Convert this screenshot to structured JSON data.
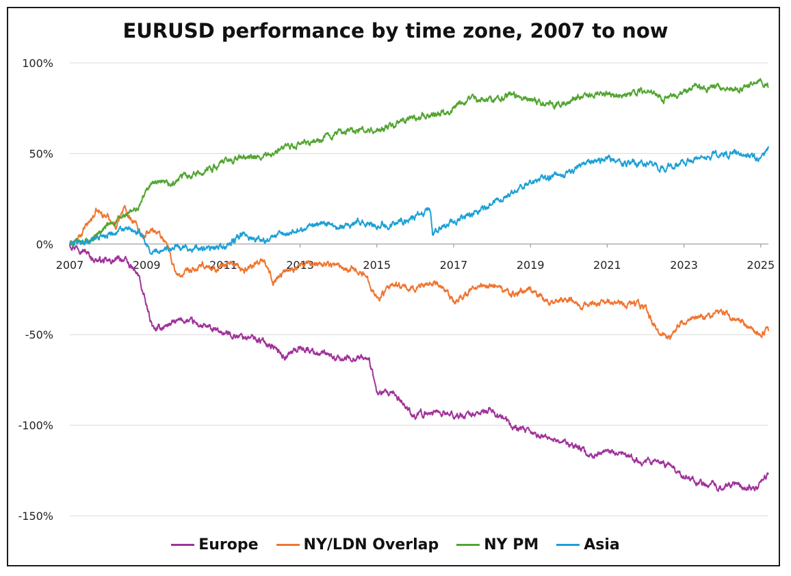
{
  "chart_data": {
    "type": "line",
    "title": "EURUSD performance by time zone, 2007 to now",
    "xlabel": "",
    "ylabel": "",
    "xlim": [
      2007,
      2025.2
    ],
    "ylim": [
      -150,
      100
    ],
    "x_ticks": [
      "2007",
      "2009",
      "2011",
      "2013",
      "2015",
      "2017",
      "2019",
      "2021",
      "2023",
      "2025"
    ],
    "y_ticks": [
      "100%",
      "50%",
      "0%",
      "-50%",
      "-100%",
      "-150%"
    ],
    "y_tick_values": [
      100,
      50,
      0,
      -50,
      -100,
      -150
    ],
    "grid": "horizontal",
    "legend_position": "bottom",
    "series": [
      {
        "name": "Europe",
        "color": "#a0329a",
        "points": [
          [
            2007.0,
            0
          ],
          [
            2007.3,
            -2
          ],
          [
            2007.6,
            -8
          ],
          [
            2008.0,
            -10
          ],
          [
            2008.4,
            -8
          ],
          [
            2008.8,
            -18
          ],
          [
            2009.0,
            -35
          ],
          [
            2009.2,
            -48
          ],
          [
            2009.6,
            -44
          ],
          [
            2010.0,
            -42
          ],
          [
            2010.4,
            -45
          ],
          [
            2010.8,
            -48
          ],
          [
            2011.2,
            -50
          ],
          [
            2011.8,
            -52
          ],
          [
            2012.2,
            -55
          ],
          [
            2012.6,
            -62
          ],
          [
            2013.0,
            -57
          ],
          [
            2013.5,
            -60
          ],
          [
            2014.0,
            -64
          ],
          [
            2014.5,
            -62
          ],
          [
            2014.8,
            -64
          ],
          [
            2015.0,
            -82
          ],
          [
            2015.5,
            -84
          ],
          [
            2016.0,
            -95
          ],
          [
            2016.5,
            -92
          ],
          [
            2017.0,
            -95
          ],
          [
            2017.5,
            -94
          ],
          [
            2018.0,
            -92
          ],
          [
            2018.5,
            -100
          ],
          [
            2019.0,
            -105
          ],
          [
            2019.5,
            -107
          ],
          [
            2020.0,
            -110
          ],
          [
            2020.6,
            -117
          ],
          [
            2021.0,
            -115
          ],
          [
            2021.6,
            -118
          ],
          [
            2022.0,
            -120
          ],
          [
            2022.6,
            -122
          ],
          [
            2023.0,
            -128
          ],
          [
            2023.5,
            -132
          ],
          [
            2024.0,
            -134
          ],
          [
            2024.5,
            -133
          ],
          [
            2024.9,
            -135
          ],
          [
            2025.2,
            -127
          ]
        ]
      },
      {
        "name": "NY/LDN Overlap",
        "color": "#f07530",
        "points": [
          [
            2007.0,
            0
          ],
          [
            2007.2,
            2
          ],
          [
            2007.5,
            12
          ],
          [
            2007.7,
            18
          ],
          [
            2008.0,
            15
          ],
          [
            2008.2,
            10
          ],
          [
            2008.4,
            20
          ],
          [
            2008.6,
            15
          ],
          [
            2008.9,
            5
          ],
          [
            2009.2,
            8
          ],
          [
            2009.5,
            2
          ],
          [
            2009.8,
            -18
          ],
          [
            2010.2,
            -15
          ],
          [
            2010.5,
            -12
          ],
          [
            2010.8,
            -14
          ],
          [
            2011.2,
            -10
          ],
          [
            2011.5,
            -15
          ],
          [
            2012.0,
            -8
          ],
          [
            2012.3,
            -20
          ],
          [
            2012.6,
            -15
          ],
          [
            2013.0,
            -12
          ],
          [
            2013.5,
            -10
          ],
          [
            2014.0,
            -12
          ],
          [
            2014.5,
            -14
          ],
          [
            2014.8,
            -20
          ],
          [
            2015.0,
            -30
          ],
          [
            2015.5,
            -22
          ],
          [
            2015.8,
            -25
          ],
          [
            2016.0,
            -24
          ],
          [
            2016.5,
            -20
          ],
          [
            2017.0,
            -32
          ],
          [
            2017.5,
            -25
          ],
          [
            2018.0,
            -22
          ],
          [
            2018.5,
            -28
          ],
          [
            2019.0,
            -25
          ],
          [
            2019.5,
            -32
          ],
          [
            2020.0,
            -30
          ],
          [
            2020.5,
            -35
          ],
          [
            2021.0,
            -30
          ],
          [
            2021.5,
            -33
          ],
          [
            2022.0,
            -35
          ],
          [
            2022.3,
            -48
          ],
          [
            2022.6,
            -52
          ],
          [
            2023.0,
            -42
          ],
          [
            2023.5,
            -40
          ],
          [
            2024.0,
            -38
          ],
          [
            2024.5,
            -42
          ],
          [
            2024.9,
            -50
          ],
          [
            2025.2,
            -48
          ]
        ]
      },
      {
        "name": "NY PM",
        "color": "#52a531",
        "points": [
          [
            2007.0,
            0
          ],
          [
            2007.5,
            2
          ],
          [
            2008.0,
            10
          ],
          [
            2008.4,
            15
          ],
          [
            2008.8,
            20
          ],
          [
            2009.1,
            34
          ],
          [
            2009.6,
            32
          ],
          [
            2010.0,
            38
          ],
          [
            2010.5,
            40
          ],
          [
            2011.0,
            45
          ],
          [
            2011.5,
            48
          ],
          [
            2012.0,
            47
          ],
          [
            2012.5,
            52
          ],
          [
            2013.0,
            55
          ],
          [
            2013.5,
            57
          ],
          [
            2014.0,
            62
          ],
          [
            2014.5,
            63
          ],
          [
            2015.0,
            62
          ],
          [
            2015.5,
            66
          ],
          [
            2016.0,
            70
          ],
          [
            2016.5,
            72
          ],
          [
            2017.0,
            75
          ],
          [
            2017.5,
            80
          ],
          [
            2018.0,
            80
          ],
          [
            2018.5,
            82
          ],
          [
            2019.0,
            80
          ],
          [
            2019.5,
            78
          ],
          [
            2020.0,
            77
          ],
          [
            2020.2,
            82
          ],
          [
            2021.0,
            83
          ],
          [
            2021.5,
            83
          ],
          [
            2022.0,
            84
          ],
          [
            2022.6,
            80
          ],
          [
            2023.0,
            85
          ],
          [
            2023.5,
            87
          ],
          [
            2024.0,
            86
          ],
          [
            2024.5,
            86
          ],
          [
            2024.9,
            90
          ],
          [
            2025.2,
            87
          ]
        ]
      },
      {
        "name": "Asia",
        "color": "#1ca0d6",
        "points": [
          [
            2007.0,
            0
          ],
          [
            2007.5,
            2
          ],
          [
            2008.0,
            6
          ],
          [
            2008.5,
            8
          ],
          [
            2008.9,
            5
          ],
          [
            2009.1,
            -5
          ],
          [
            2009.5,
            -2
          ],
          [
            2010.0,
            -2
          ],
          [
            2010.5,
            -3
          ],
          [
            2011.0,
            -2
          ],
          [
            2011.5,
            5
          ],
          [
            2012.0,
            2
          ],
          [
            2012.5,
            5
          ],
          [
            2013.0,
            8
          ],
          [
            2013.5,
            12
          ],
          [
            2014.0,
            10
          ],
          [
            2014.5,
            12
          ],
          [
            2015.0,
            10
          ],
          [
            2015.5,
            12
          ],
          [
            2016.0,
            15
          ],
          [
            2016.4,
            18
          ],
          [
            2016.45,
            6
          ],
          [
            2017.0,
            12
          ],
          [
            2017.5,
            16
          ],
          [
            2018.0,
            22
          ],
          [
            2018.5,
            28
          ],
          [
            2019.0,
            35
          ],
          [
            2019.5,
            37
          ],
          [
            2020.0,
            38
          ],
          [
            2020.2,
            42
          ],
          [
            2021.0,
            47
          ],
          [
            2021.5,
            45
          ],
          [
            2022.0,
            44
          ],
          [
            2022.5,
            42
          ],
          [
            2023.0,
            45
          ],
          [
            2023.5,
            48
          ],
          [
            2024.0,
            50
          ],
          [
            2024.5,
            50
          ],
          [
            2024.9,
            47
          ],
          [
            2025.1,
            48
          ],
          [
            2025.2,
            54
          ]
        ]
      }
    ]
  }
}
